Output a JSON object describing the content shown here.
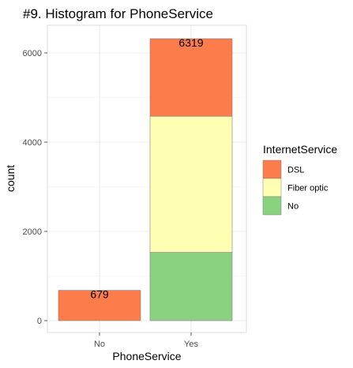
{
  "chart_data": {
    "type": "bar",
    "stacked": true,
    "title": "#9. Histogram for PhoneService",
    "xlabel": "PhoneService",
    "ylabel": "count",
    "categories": [
      "No",
      "Yes"
    ],
    "series": [
      {
        "name": "DSL",
        "color": "#fc7d4b",
        "values": [
          679,
          1739
        ]
      },
      {
        "name": "Fiber optic",
        "color": "#ffffb3",
        "values": [
          0,
          3051
        ]
      },
      {
        "name": "No",
        "color": "#8ad280",
        "values": [
          0,
          1529
        ]
      }
    ],
    "totals": [
      679,
      6319
    ],
    "ylim": [
      0,
      6500
    ],
    "yticks": [
      0,
      2000,
      4000,
      6000
    ],
    "grid": true,
    "legend": {
      "title": "InternetService",
      "placement": "right"
    }
  }
}
